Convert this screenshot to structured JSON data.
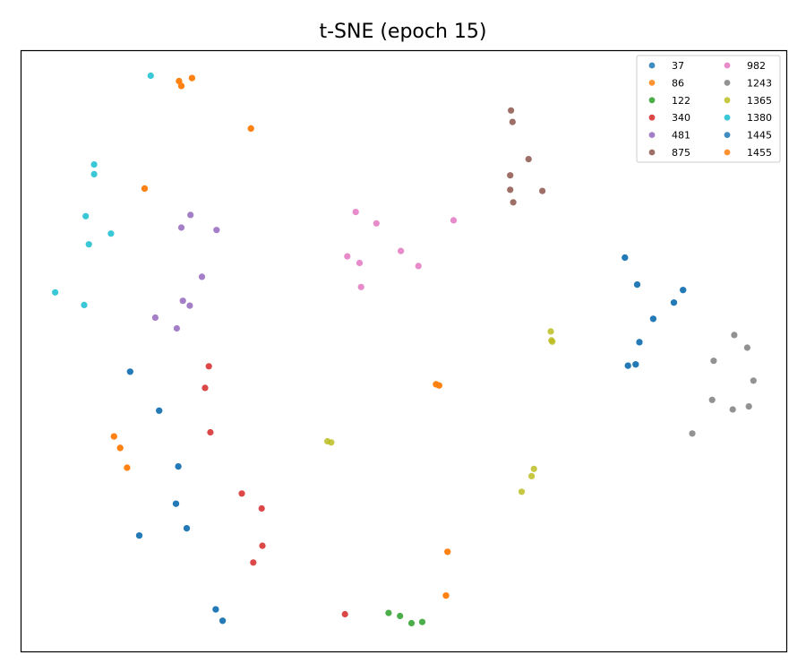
{
  "chart_data": {
    "type": "scatter",
    "title": "t-SNE (epoch 15)",
    "xlabel": "",
    "ylabel": "",
    "xlim": [
      0,
      100
    ],
    "ylim": [
      0,
      100
    ],
    "grid": false,
    "axis_ticks": false,
    "legend_position": "top-right",
    "legend_columns": 2,
    "series": [
      {
        "name": "37",
        "color": "#1f77b4",
        "points": [
          [
            14.2,
            46.6
          ],
          [
            18.0,
            40.1
          ],
          [
            20.5,
            30.8
          ],
          [
            20.2,
            24.6
          ],
          [
            15.4,
            19.3
          ],
          [
            21.6,
            20.5
          ],
          [
            25.4,
            7.0
          ],
          [
            26.3,
            5.1
          ],
          [
            78.9,
            65.6
          ],
          [
            80.5,
            61.1
          ],
          [
            80.3,
            47.8
          ],
          [
            82.6,
            55.4
          ],
          [
            80.8,
            51.5
          ],
          [
            85.3,
            58.1
          ],
          [
            86.5,
            60.2
          ],
          [
            79.3,
            47.6
          ]
        ]
      },
      {
        "name": "86",
        "color": "#ff7f0e",
        "points": [
          [
            20.6,
            95.0
          ],
          [
            20.9,
            94.2
          ],
          [
            22.3,
            95.5
          ],
          [
            30.0,
            87.1
          ],
          [
            16.1,
            77.1
          ],
          [
            54.2,
            44.5
          ],
          [
            54.6,
            44.3
          ],
          [
            12.1,
            35.8
          ],
          [
            12.9,
            33.9
          ],
          [
            13.8,
            30.6
          ],
          [
            55.7,
            16.6
          ],
          [
            55.5,
            9.3
          ]
        ]
      },
      {
        "name": "122",
        "color": "#2ca02c",
        "points": [
          [
            48.0,
            6.4
          ],
          [
            49.5,
            5.9
          ],
          [
            51.0,
            4.7
          ],
          [
            52.4,
            4.9
          ]
        ]
      },
      {
        "name": "340",
        "color": "#d62728",
        "points": [
          [
            24.5,
            47.5
          ],
          [
            24.0,
            43.9
          ],
          [
            24.7,
            36.5
          ],
          [
            28.8,
            26.3
          ],
          [
            31.4,
            23.8
          ],
          [
            31.5,
            17.6
          ],
          [
            30.3,
            14.8
          ],
          [
            42.3,
            6.2
          ]
        ]
      },
      {
        "name": "481",
        "color": "#9467bd",
        "points": [
          [
            22.1,
            72.7
          ],
          [
            20.9,
            70.6
          ],
          [
            25.5,
            70.2
          ],
          [
            23.6,
            62.4
          ],
          [
            21.1,
            58.4
          ],
          [
            22.0,
            57.6
          ],
          [
            17.5,
            55.6
          ],
          [
            20.3,
            53.8
          ]
        ]
      },
      {
        "name": "875",
        "color": "#8c564b",
        "points": [
          [
            64.0,
            90.1
          ],
          [
            64.2,
            88.2
          ],
          [
            66.3,
            82.0
          ],
          [
            63.9,
            79.3
          ],
          [
            68.1,
            76.7
          ],
          [
            63.9,
            76.9
          ],
          [
            64.3,
            74.8
          ]
        ]
      },
      {
        "name": "982",
        "color": "#e377c2",
        "points": [
          [
            43.7,
            73.2
          ],
          [
            46.4,
            71.3
          ],
          [
            56.5,
            71.8
          ],
          [
            42.6,
            65.8
          ],
          [
            44.2,
            64.7
          ],
          [
            49.6,
            66.7
          ],
          [
            51.9,
            64.2
          ],
          [
            44.4,
            60.7
          ]
        ]
      },
      {
        "name": "1243",
        "color": "#7f7f7f",
        "points": [
          [
            93.2,
            52.7
          ],
          [
            94.9,
            50.6
          ],
          [
            90.5,
            48.4
          ],
          [
            95.7,
            45.1
          ],
          [
            90.3,
            41.9
          ],
          [
            93.0,
            40.3
          ],
          [
            95.1,
            40.8
          ],
          [
            87.7,
            36.3
          ]
        ]
      },
      {
        "name": "1365",
        "color": "#bcbd22",
        "points": [
          [
            69.2,
            53.3
          ],
          [
            69.4,
            51.6
          ],
          [
            69.3,
            51.8
          ],
          [
            40.0,
            35.0
          ],
          [
            40.5,
            34.8
          ],
          [
            67.0,
            30.4
          ],
          [
            66.7,
            29.2
          ],
          [
            65.4,
            26.6
          ]
        ]
      },
      {
        "name": "1380",
        "color": "#17becf",
        "points": [
          [
            16.9,
            95.9
          ],
          [
            9.5,
            81.1
          ],
          [
            9.5,
            79.5
          ],
          [
            8.4,
            72.5
          ],
          [
            11.7,
            69.6
          ],
          [
            8.8,
            67.8
          ],
          [
            4.4,
            59.8
          ],
          [
            8.2,
            57.7
          ]
        ]
      },
      {
        "name": "1445",
        "color": "#1f77b4",
        "points": [
          [
            14.2,
            46.6
          ],
          [
            18.0,
            40.1
          ],
          [
            20.5,
            30.8
          ],
          [
            20.2,
            24.6
          ],
          [
            15.4,
            19.3
          ],
          [
            21.6,
            20.5
          ],
          [
            25.4,
            7.0
          ],
          [
            26.3,
            5.1
          ],
          [
            78.9,
            65.6
          ],
          [
            80.5,
            61.1
          ],
          [
            80.3,
            47.8
          ],
          [
            82.6,
            55.4
          ],
          [
            80.8,
            51.5
          ],
          [
            85.3,
            58.1
          ],
          [
            86.5,
            60.2
          ],
          [
            79.3,
            47.6
          ]
        ]
      },
      {
        "name": "1455",
        "color": "#ff7f0e",
        "points": [
          [
            20.6,
            95.0
          ],
          [
            20.9,
            94.2
          ],
          [
            22.3,
            95.5
          ],
          [
            30.0,
            87.1
          ],
          [
            16.1,
            77.1
          ],
          [
            54.2,
            44.5
          ],
          [
            54.6,
            44.3
          ],
          [
            12.1,
            35.8
          ],
          [
            12.9,
            33.9
          ],
          [
            13.8,
            30.6
          ],
          [
            55.7,
            16.6
          ],
          [
            55.5,
            9.3
          ]
        ]
      }
    ]
  }
}
